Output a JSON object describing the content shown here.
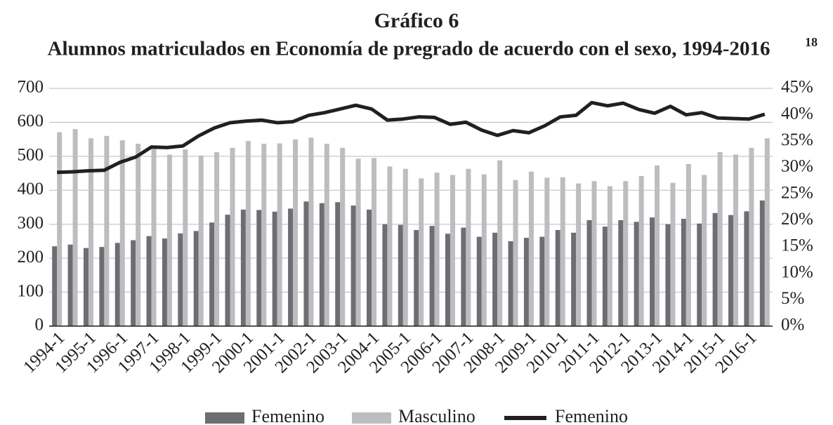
{
  "chart_data": {
    "type": "bar",
    "title": "Gráfico 6",
    "subtitle": "Alumnos matriculados en Economía de pregrado de acuerdo con el sexo, 1994-2016",
    "subtitle_footnote": "18",
    "categories": [
      "1994-1",
      null,
      "1995-1",
      null,
      "1996-1",
      null,
      "1997-1",
      null,
      "1998-1",
      null,
      "1999-1",
      null,
      "2000-1",
      null,
      "2001-1",
      null,
      "2002-1",
      null,
      "2003-1",
      null,
      "2004-1",
      null,
      "2005-1",
      null,
      "2006-1",
      null,
      "2007-1",
      null,
      "2008-1",
      null,
      "2009-1",
      null,
      "2010-1",
      null,
      "2011-1",
      null,
      "2012-1",
      null,
      "2013-1",
      null,
      "2014-1",
      null,
      "2015-1",
      null,
      "2016-1",
      null
    ],
    "series": [
      {
        "name": "Femenino",
        "color": "#6d6e71",
        "type": "bar",
        "values": [
          235,
          240,
          230,
          233,
          245,
          253,
          265,
          258,
          273,
          280,
          305,
          328,
          343,
          342,
          337,
          346,
          367,
          362,
          365,
          355,
          343,
          300,
          298,
          283,
          295,
          272,
          290,
          263,
          275,
          250,
          260,
          263,
          283,
          275,
          312,
          293,
          312,
          307,
          320,
          300,
          316,
          302,
          333,
          327,
          338,
          370
        ]
      },
      {
        "name": "Masculino",
        "color": "#bcbdc0",
        "type": "bar",
        "values": [
          571,
          580,
          553,
          560,
          547,
          537,
          525,
          505,
          520,
          502,
          512,
          525,
          545,
          537,
          538,
          550,
          555,
          537,
          525,
          493,
          495,
          470,
          463,
          435,
          452,
          445,
          463,
          447,
          488,
          430,
          455,
          437,
          438,
          420,
          427,
          412,
          427,
          442,
          473,
          422,
          477,
          445,
          512,
          505,
          525,
          553
        ]
      },
      {
        "name": "Femenino",
        "color": "#231f20",
        "type": "line",
        "axis": "y2",
        "values": [
          29.1,
          29.2,
          29.4,
          29.5,
          31,
          32,
          33.9,
          33.8,
          34.1,
          36,
          37.5,
          38.5,
          38.8,
          39,
          38.5,
          38.7,
          39.9,
          40.4,
          41.1,
          41.8,
          41.1,
          39,
          39.2,
          39.6,
          39.5,
          38.2,
          38.6,
          37.1,
          36.1,
          37,
          36.6,
          37.9,
          39.6,
          39.9,
          42.3,
          41.7,
          42.2,
          41,
          40.3,
          41.6,
          40,
          40.4,
          39.4,
          39.3,
          39.2,
          40.1
        ]
      }
    ],
    "ylim": [
      0,
      700
    ],
    "yticks": [
      0,
      100,
      200,
      300,
      400,
      500,
      600,
      700
    ],
    "y2lim": [
      0,
      45
    ],
    "y2ticks": [
      {
        "value": 0,
        "label": "0%"
      },
      {
        "value": 5,
        "label": "5%"
      },
      {
        "value": 10,
        "label": "10%"
      },
      {
        "value": 15,
        "label": "15%"
      },
      {
        "value": 20,
        "label": "20%"
      },
      {
        "value": 25,
        "label": "25%"
      },
      {
        "value": 30,
        "label": "30%"
      },
      {
        "value": 35,
        "label": "35%"
      },
      {
        "value": 40,
        "label": "40%"
      },
      {
        "value": 45,
        "label": "45%"
      }
    ],
    "grid": true,
    "legend": "bottom"
  }
}
